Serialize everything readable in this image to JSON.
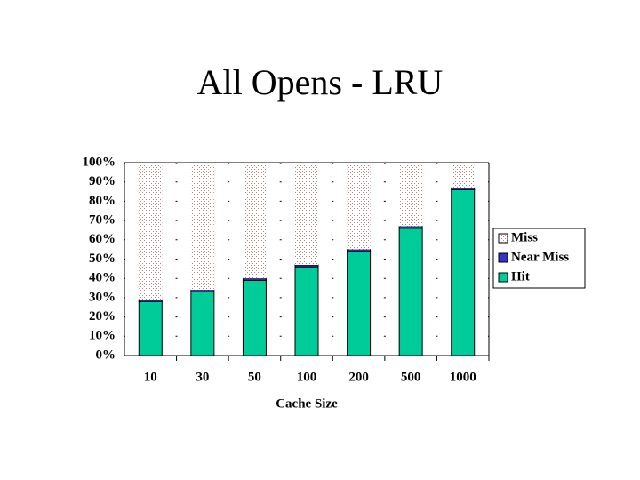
{
  "chart_data": {
    "type": "stacked_bar",
    "title": "All Opens - LRU",
    "x_label": "Cache Size",
    "categories": [
      "10",
      "30",
      "50",
      "100",
      "200",
      "500",
      "1000"
    ],
    "series": [
      {
        "name": "Hit",
        "color": "#00cc99",
        "values": [
          28,
          33,
          39,
          46,
          54,
          66,
          86
        ]
      },
      {
        "name": "Near Miss",
        "color": "#3333cc",
        "values": [
          1,
          1,
          1,
          1,
          1,
          1,
          1
        ]
      },
      {
        "name": "Miss",
        "color": "#ffffff",
        "values": [
          71,
          66,
          60,
          53,
          45,
          33,
          13
        ]
      }
    ],
    "ylim": [
      0,
      100
    ],
    "yticks": [
      {
        "value": 0,
        "label": "0%"
      },
      {
        "value": 10,
        "label": "10%"
      },
      {
        "value": 20,
        "label": "20%"
      },
      {
        "value": 30,
        "label": "30%"
      },
      {
        "value": 40,
        "label": "40%"
      },
      {
        "value": 50,
        "label": "50%"
      },
      {
        "value": 60,
        "label": "60%"
      },
      {
        "value": 70,
        "label": "70%"
      },
      {
        "value": 80,
        "label": "80%"
      },
      {
        "value": 90,
        "label": "90%"
      },
      {
        "value": 100,
        "label": "100%"
      }
    ],
    "grid": true
  }
}
